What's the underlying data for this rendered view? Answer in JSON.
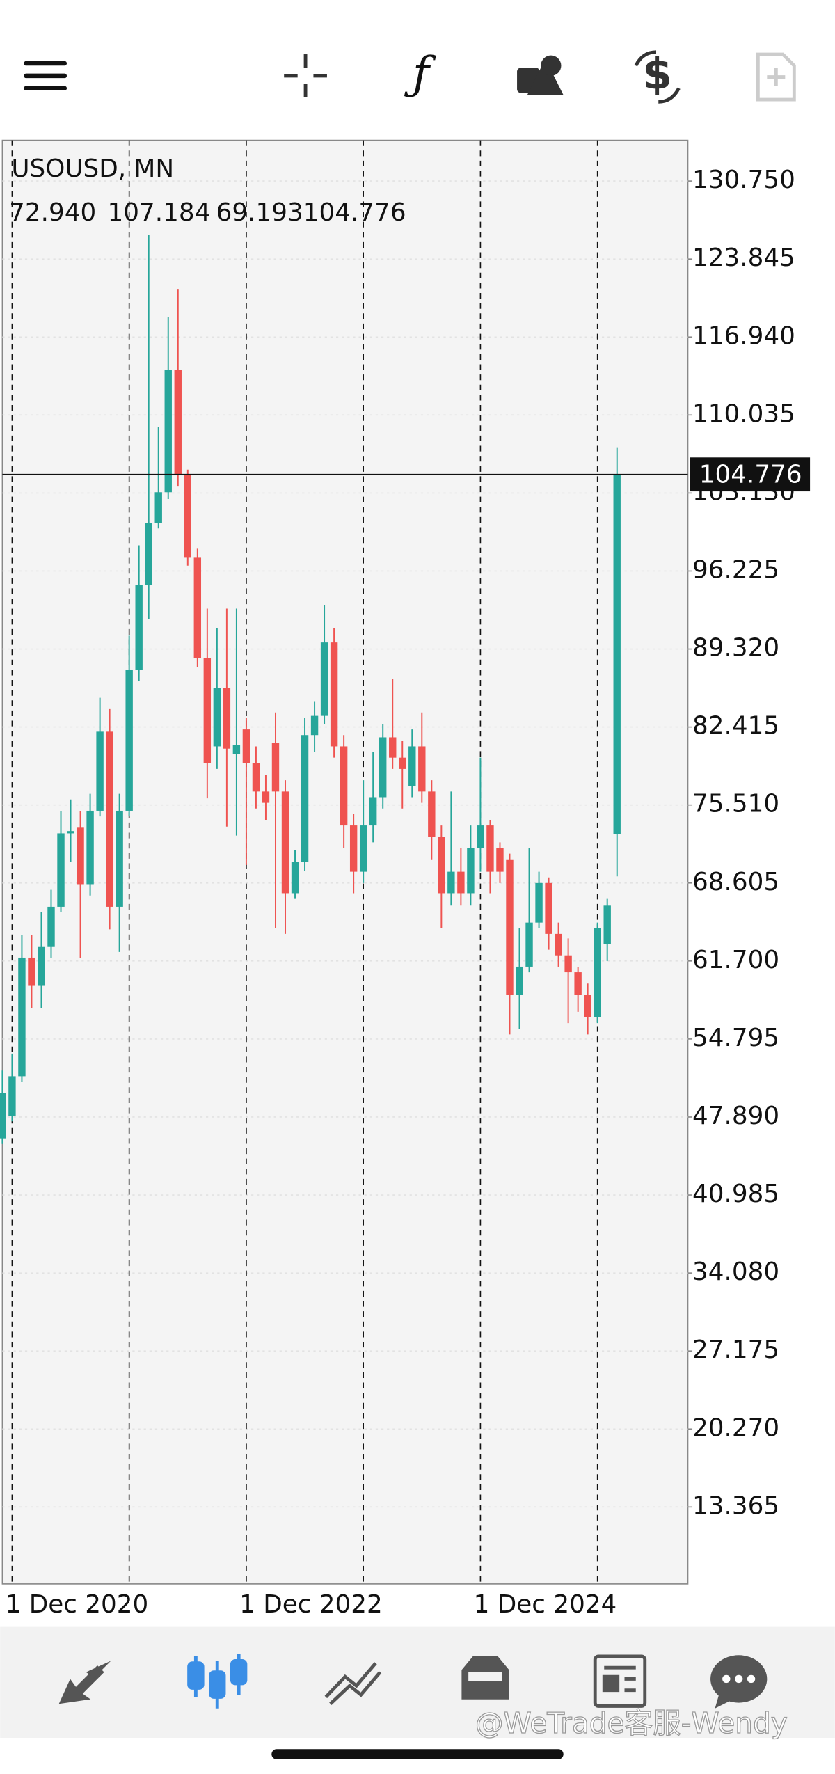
{
  "chart_data": {
    "type": "candlestick",
    "title": "USOUSD, MN",
    "header_values": [
      "72.940",
      "107.184",
      "69.193",
      "104.776"
    ],
    "categories": [
      null,
      "1 Dec 2020",
      null,
      null,
      null,
      null,
      null,
      null,
      null,
      null,
      null,
      null,
      null,
      null,
      null,
      null,
      null,
      null,
      null,
      null,
      null,
      null,
      null,
      null,
      null,
      "1 Dec 2022",
      null,
      null,
      null,
      null,
      null,
      null,
      null,
      null,
      null,
      null,
      null,
      null,
      null,
      null,
      null,
      null,
      null,
      null,
      null,
      null,
      null,
      null,
      null,
      "1 Dec 2024",
      null,
      null,
      null,
      null,
      null,
      null,
      null,
      null,
      null,
      null,
      null,
      null,
      null,
      null
    ],
    "open": [
      46,
      48,
      51.5,
      62,
      59.5,
      63,
      66.5,
      73,
      73.5,
      68.5,
      75,
      82,
      66.5,
      75,
      87.5,
      95,
      100.5,
      103.2,
      114,
      104.7,
      97.4,
      88.5,
      80.7,
      85.9,
      80,
      82.2,
      79.2,
      76.7,
      81,
      76.7,
      67.7,
      70.5,
      81.7,
      83.4,
      89.9,
      80.7,
      73.7,
      69.6,
      73.7,
      76.2,
      81.5,
      79.7,
      77.2,
      80.7,
      76.7,
      72.7,
      67.7,
      69.6,
      67.7,
      71.7,
      73.7,
      71.7,
      70.7,
      58.7,
      61.2,
      65.1,
      68.6,
      64.1,
      62.2,
      60.7,
      58.7,
      56.7,
      63.2,
      72.94
    ],
    "high": [
      52,
      53.5,
      64,
      64,
      66,
      68,
      75,
      76,
      75,
      76.5,
      85,
      84,
      76.5,
      90.5,
      98.5,
      126,
      109,
      118.7,
      121.2,
      105.2,
      98.2,
      92.9,
      91.2,
      92.9,
      92.9,
      83.2,
      80.7,
      78.2,
      83.7,
      77.7,
      71.5,
      83.2,
      84.7,
      93.2,
      91.2,
      81.7,
      74.7,
      77.7,
      80.2,
      82.7,
      86.7,
      81.2,
      82.2,
      83.7,
      77.7,
      73.7,
      76.7,
      71.7,
      73.7,
      79.7,
      74.2,
      72.2,
      71.2,
      64.6,
      71.7,
      69.6,
      69.1,
      65.1,
      63.7,
      61.2,
      59.7,
      65.1,
      67.2,
      107.184
    ],
    "low": [
      45.5,
      47.5,
      51,
      57.5,
      57.5,
      62,
      66,
      70.5,
      62,
      67.5,
      74.5,
      64.5,
      62.5,
      74.5,
      86.5,
      92,
      100,
      102.6,
      103.7,
      96.7,
      87.7,
      76.1,
      78.7,
      73.6,
      72.8,
      70.2,
      75.2,
      74.2,
      64.6,
      64.1,
      67.2,
      69.7,
      80.2,
      82.7,
      79.7,
      71.7,
      67.7,
      68.6,
      72.2,
      75.2,
      78.7,
      75.2,
      76.2,
      75.7,
      70.7,
      64.6,
      66.6,
      66.6,
      66.6,
      69.6,
      67.7,
      68.6,
      55.2,
      55.7,
      60.7,
      64.6,
      62.7,
      61.2,
      56.2,
      57.2,
      55.2,
      56.2,
      61.7,
      69.193
    ],
    "close": [
      50,
      51.5,
      62,
      59.5,
      63,
      66.5,
      73,
      73.2,
      68.5,
      75,
      82,
      66.5,
      75,
      87.5,
      95,
      100.5,
      103.2,
      114,
      104.7,
      97.4,
      88.5,
      79.2,
      85.9,
      80.5,
      80.8,
      79.2,
      76.7,
      75.7,
      76.7,
      67.7,
      70.5,
      81.7,
      83.4,
      89.9,
      80.7,
      73.7,
      69.6,
      73.7,
      76.2,
      81.5,
      79.7,
      78.7,
      80.7,
      76.7,
      72.7,
      67.7,
      69.6,
      67.7,
      71.7,
      73.7,
      69.6,
      69.6,
      58.7,
      61.2,
      65.1,
      68.6,
      64.1,
      62.2,
      60.7,
      58.7,
      56.7,
      64.6,
      66.6,
      104.776
    ],
    "up_color": "#26a69a",
    "down_color": "#ef5350",
    "current_price": 104.776,
    "ylim": [
      6.554,
      134.356
    ],
    "yticks": [
      {
        "value": 130.75,
        "label": "130.750"
      },
      {
        "value": 123.845,
        "label": "123.845"
      },
      {
        "value": 116.94,
        "label": "116.940"
      },
      {
        "value": 110.035,
        "label": "110.035"
      },
      {
        "value": 103.13,
        "label": "103.130"
      },
      {
        "value": 96.225,
        "label": "96.225"
      },
      {
        "value": 89.32,
        "label": "89.320"
      },
      {
        "value": 82.415,
        "label": "82.415"
      },
      {
        "value": 75.51,
        "label": "75.510"
      },
      {
        "value": 68.605,
        "label": "68.605"
      },
      {
        "value": 61.7,
        "label": "61.700"
      },
      {
        "value": 54.795,
        "label": "54.795"
      },
      {
        "value": 47.89,
        "label": "47.890"
      },
      {
        "value": 40.985,
        "label": "40.985"
      },
      {
        "value": 34.08,
        "label": "34.080"
      },
      {
        "value": 27.175,
        "label": "27.175"
      },
      {
        "value": 20.27,
        "label": "20.270"
      },
      {
        "value": 13.365,
        "label": "13.365"
      }
    ],
    "grid": true
  },
  "watermark": "@WeTrade客服-Wendy"
}
